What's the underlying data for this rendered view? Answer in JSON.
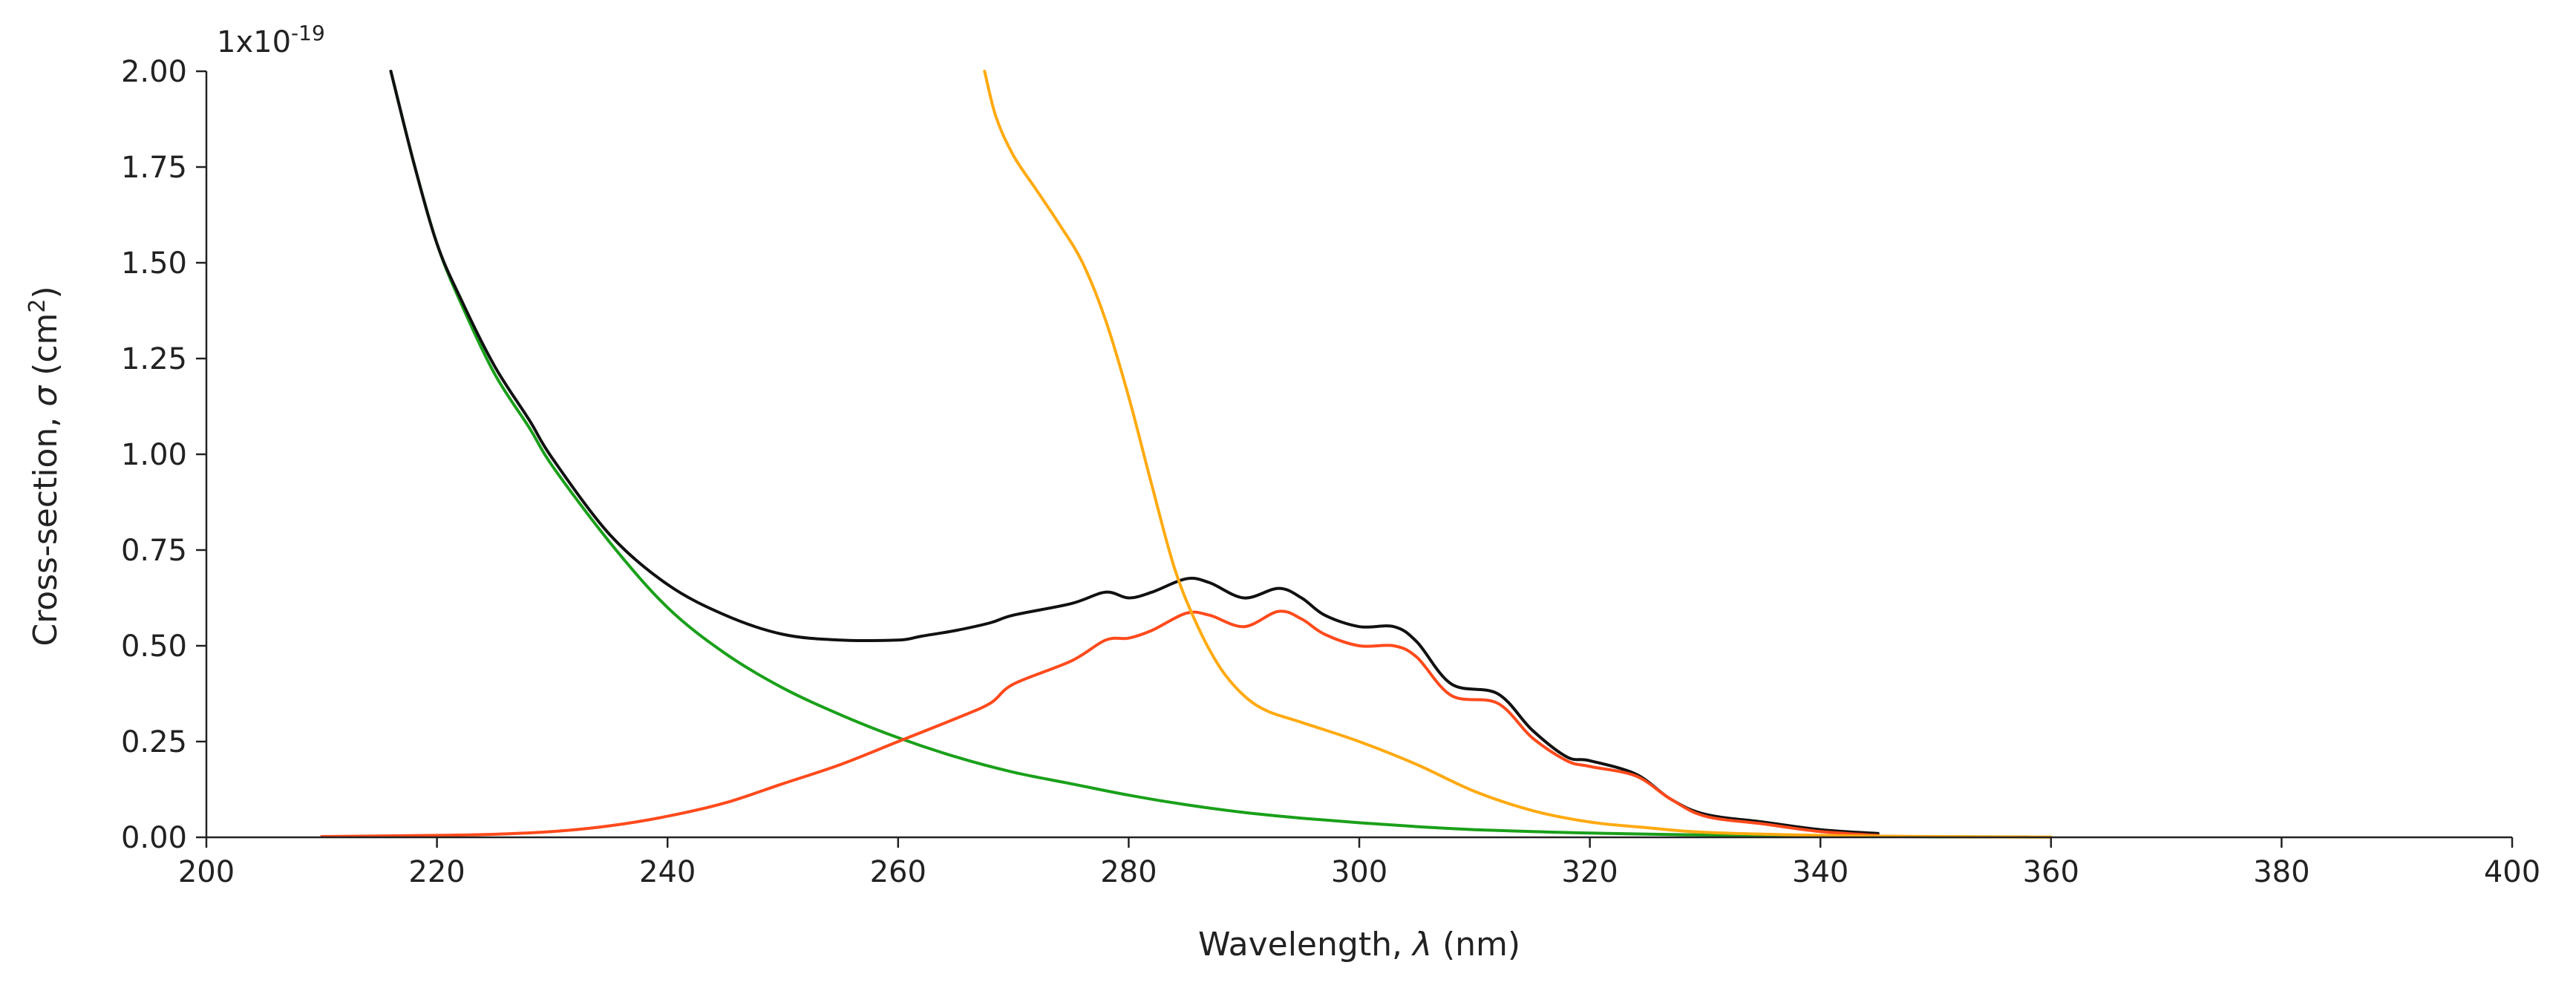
{
  "chart_data": {
    "type": "line",
    "title": "",
    "xlabel_prefix": "Wavelength, ",
    "xlabel_symbol": "λ",
    "xlabel_suffix": " (nm)",
    "ylabel_prefix": "Cross-section, ",
    "ylabel_symbol": "σ",
    "ylabel_unit": " (cm",
    "ylabel_sup": "2",
    "ylabel_close": ")",
    "y_multiplier_base": "1x10",
    "y_multiplier_exp": "-19",
    "xlim": [
      200,
      400
    ],
    "ylim": [
      0,
      2.0
    ],
    "x_ticks": [
      "200",
      "220",
      "240",
      "260",
      "280",
      "300",
      "320",
      "340",
      "360",
      "380",
      "400"
    ],
    "y_ticks": [
      "0.00",
      "0.25",
      "0.50",
      "0.75",
      "1.00",
      "1.25",
      "1.50",
      "1.75",
      "2.00"
    ],
    "grid": false,
    "legend": "none",
    "series": [
      {
        "name": "green",
        "color": "#1aa01a",
        "points": [
          [
            216,
            2.0
          ],
          [
            218,
            1.76
          ],
          [
            220,
            1.55
          ],
          [
            222,
            1.4
          ],
          [
            225,
            1.21
          ],
          [
            228,
            1.07
          ],
          [
            230,
            0.97
          ],
          [
            235,
            0.77
          ],
          [
            240,
            0.6
          ],
          [
            245,
            0.48
          ],
          [
            250,
            0.39
          ],
          [
            255,
            0.32
          ],
          [
            260,
            0.26
          ],
          [
            265,
            0.21
          ],
          [
            270,
            0.17
          ],
          [
            275,
            0.14
          ],
          [
            280,
            0.11
          ],
          [
            285,
            0.085
          ],
          [
            290,
            0.065
          ],
          [
            295,
            0.05
          ],
          [
            300,
            0.038
          ],
          [
            305,
            0.028
          ],
          [
            310,
            0.02
          ],
          [
            315,
            0.015
          ],
          [
            320,
            0.011
          ],
          [
            330,
            0.006
          ],
          [
            340,
            0.003
          ],
          [
            350,
            0.0015
          ],
          [
            358,
            0.001
          ]
        ]
      },
      {
        "name": "black",
        "color": "#111111",
        "points": [
          [
            216,
            2.0
          ],
          [
            218,
            1.76
          ],
          [
            220,
            1.55
          ],
          [
            222,
            1.41
          ],
          [
            225,
            1.23
          ],
          [
            228,
            1.09
          ],
          [
            230,
            0.99
          ],
          [
            235,
            0.79
          ],
          [
            240,
            0.66
          ],
          [
            245,
            0.58
          ],
          [
            250,
            0.53
          ],
          [
            255,
            0.515
          ],
          [
            260,
            0.515
          ],
          [
            262,
            0.525
          ],
          [
            265,
            0.54
          ],
          [
            268,
            0.56
          ],
          [
            270,
            0.58
          ],
          [
            275,
            0.61
          ],
          [
            278,
            0.64
          ],
          [
            280,
            0.625
          ],
          [
            282,
            0.64
          ],
          [
            285,
            0.675
          ],
          [
            287,
            0.665
          ],
          [
            290,
            0.625
          ],
          [
            293,
            0.65
          ],
          [
            295,
            0.625
          ],
          [
            297,
            0.58
          ],
          [
            300,
            0.55
          ],
          [
            303,
            0.55
          ],
          [
            305,
            0.51
          ],
          [
            308,
            0.4
          ],
          [
            312,
            0.375
          ],
          [
            315,
            0.28
          ],
          [
            318,
            0.21
          ],
          [
            320,
            0.2
          ],
          [
            324,
            0.165
          ],
          [
            327,
            0.1
          ],
          [
            330,
            0.06
          ],
          [
            335,
            0.04
          ],
          [
            340,
            0.02
          ],
          [
            345,
            0.01
          ]
        ]
      },
      {
        "name": "red",
        "color": "#ff4a1c",
        "points": [
          [
            210,
            0.002
          ],
          [
            220,
            0.005
          ],
          [
            225,
            0.008
          ],
          [
            230,
            0.015
          ],
          [
            235,
            0.03
          ],
          [
            240,
            0.055
          ],
          [
            245,
            0.09
          ],
          [
            250,
            0.14
          ],
          [
            255,
            0.19
          ],
          [
            260,
            0.25
          ],
          [
            265,
            0.31
          ],
          [
            268,
            0.35
          ],
          [
            270,
            0.4
          ],
          [
            275,
            0.46
          ],
          [
            278,
            0.515
          ],
          [
            280,
            0.52
          ],
          [
            282,
            0.54
          ],
          [
            285,
            0.585
          ],
          [
            287,
            0.58
          ],
          [
            290,
            0.55
          ],
          [
            293,
            0.59
          ],
          [
            295,
            0.57
          ],
          [
            297,
            0.53
          ],
          [
            300,
            0.5
          ],
          [
            303,
            0.5
          ],
          [
            305,
            0.47
          ],
          [
            308,
            0.37
          ],
          [
            312,
            0.35
          ],
          [
            315,
            0.26
          ],
          [
            318,
            0.2
          ],
          [
            320,
            0.185
          ],
          [
            324,
            0.16
          ],
          [
            327,
            0.1
          ],
          [
            330,
            0.055
          ],
          [
            335,
            0.035
          ],
          [
            340,
            0.015
          ],
          [
            345,
            0.005
          ]
        ]
      },
      {
        "name": "orange",
        "color": "#ffaa11",
        "points": [
          [
            267.5,
            2.0
          ],
          [
            268.5,
            1.88
          ],
          [
            270,
            1.78
          ],
          [
            272,
            1.69
          ],
          [
            274,
            1.6
          ],
          [
            276,
            1.5
          ],
          [
            278,
            1.35
          ],
          [
            280,
            1.15
          ],
          [
            282,
            0.92
          ],
          [
            284,
            0.7
          ],
          [
            286,
            0.55
          ],
          [
            288,
            0.44
          ],
          [
            290,
            0.37
          ],
          [
            292,
            0.33
          ],
          [
            295,
            0.3
          ],
          [
            300,
            0.25
          ],
          [
            305,
            0.19
          ],
          [
            310,
            0.12
          ],
          [
            315,
            0.07
          ],
          [
            320,
            0.04
          ],
          [
            325,
            0.025
          ],
          [
            330,
            0.013
          ],
          [
            340,
            0.005
          ],
          [
            350,
            0.002
          ],
          [
            360,
            0.0005
          ]
        ]
      }
    ]
  }
}
